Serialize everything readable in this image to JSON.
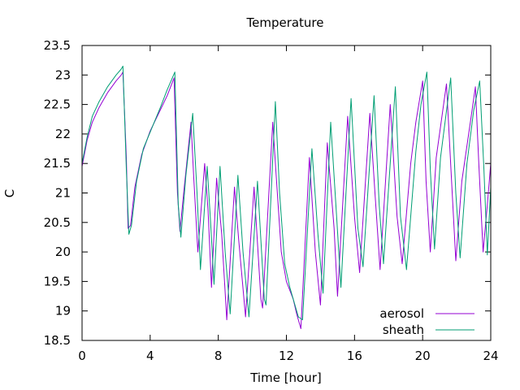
{
  "chart_data": {
    "type": "line",
    "title": "Temperature",
    "xlabel": "Time [hour]",
    "ylabel": "C",
    "xlim": [
      0,
      24
    ],
    "ylim": [
      18.5,
      23.5
    ],
    "xticks": [
      0,
      4,
      8,
      12,
      16,
      20,
      24
    ],
    "yticks": [
      18.5,
      19,
      19.5,
      20,
      20.5,
      21,
      21.5,
      22,
      22.5,
      23,
      23.5
    ],
    "grid": false,
    "legend_position": "bottom-right",
    "series": [
      {
        "name": "aerosol",
        "color": "#9400d3",
        "points": [
          [
            0,
            21.45
          ],
          [
            0.3,
            21.9
          ],
          [
            0.6,
            22.2
          ],
          [
            1.0,
            22.45
          ],
          [
            1.5,
            22.7
          ],
          [
            2.0,
            22.9
          ],
          [
            2.3,
            23.0
          ],
          [
            2.4,
            23.05
          ],
          [
            2.6,
            21.6
          ],
          [
            2.7,
            20.4
          ],
          [
            2.85,
            20.45
          ],
          [
            3.1,
            21.1
          ],
          [
            3.5,
            21.65
          ],
          [
            4.0,
            22.05
          ],
          [
            4.5,
            22.35
          ],
          [
            5.0,
            22.65
          ],
          [
            5.4,
            22.95
          ],
          [
            5.6,
            21.0
          ],
          [
            5.75,
            20.35
          ],
          [
            6.0,
            21.1
          ],
          [
            6.4,
            22.2
          ],
          [
            6.55,
            21.3
          ],
          [
            6.8,
            20.0
          ],
          [
            7.2,
            21.5
          ],
          [
            7.4,
            20.7
          ],
          [
            7.6,
            19.4
          ],
          [
            7.9,
            21.25
          ],
          [
            8.2,
            20.3
          ],
          [
            8.5,
            18.85
          ],
          [
            8.95,
            21.1
          ],
          [
            9.2,
            20.2
          ],
          [
            9.6,
            18.9
          ],
          [
            10.1,
            21.1
          ],
          [
            10.5,
            19.2
          ],
          [
            10.6,
            19.05
          ],
          [
            11.2,
            22.2
          ],
          [
            11.4,
            21.3
          ],
          [
            11.7,
            20.0
          ],
          [
            12.0,
            19.5
          ],
          [
            12.4,
            19.2
          ],
          [
            12.6,
            18.95
          ],
          [
            12.85,
            18.7
          ],
          [
            13.35,
            21.6
          ],
          [
            13.7,
            20.0
          ],
          [
            14.0,
            19.1
          ],
          [
            14.4,
            21.85
          ],
          [
            14.8,
            20.4
          ],
          [
            15.0,
            19.25
          ],
          [
            15.6,
            22.3
          ],
          [
            16.0,
            20.6
          ],
          [
            16.3,
            19.65
          ],
          [
            16.9,
            22.35
          ],
          [
            17.2,
            21.0
          ],
          [
            17.5,
            19.7
          ],
          [
            18.1,
            22.5
          ],
          [
            18.5,
            20.6
          ],
          [
            18.8,
            19.8
          ],
          [
            19.3,
            21.5
          ],
          [
            19.6,
            22.2
          ],
          [
            20.0,
            22.9
          ],
          [
            20.2,
            21.2
          ],
          [
            20.45,
            20.0
          ],
          [
            20.8,
            21.6
          ],
          [
            21.4,
            22.85
          ],
          [
            21.7,
            21.2
          ],
          [
            21.95,
            19.85
          ],
          [
            22.3,
            21.2
          ],
          [
            22.8,
            22.2
          ],
          [
            23.1,
            22.8
          ],
          [
            23.3,
            21.5
          ],
          [
            23.55,
            20.0
          ],
          [
            23.8,
            20.8
          ],
          [
            24.0,
            21.5
          ]
        ]
      },
      {
        "name": "sheath",
        "color": "#009e73",
        "points": [
          [
            0,
            21.5
          ],
          [
            0.3,
            21.95
          ],
          [
            0.6,
            22.3
          ],
          [
            1.0,
            22.55
          ],
          [
            1.5,
            22.8
          ],
          [
            2.0,
            23.0
          ],
          [
            2.3,
            23.1
          ],
          [
            2.4,
            23.15
          ],
          [
            2.6,
            21.4
          ],
          [
            2.75,
            20.3
          ],
          [
            2.9,
            20.45
          ],
          [
            3.2,
            21.2
          ],
          [
            3.6,
            21.75
          ],
          [
            4.1,
            22.1
          ],
          [
            4.6,
            22.45
          ],
          [
            5.0,
            22.75
          ],
          [
            5.45,
            23.05
          ],
          [
            5.65,
            20.8
          ],
          [
            5.8,
            20.25
          ],
          [
            6.1,
            21.3
          ],
          [
            6.5,
            22.35
          ],
          [
            6.75,
            21.0
          ],
          [
            6.95,
            19.7
          ],
          [
            7.35,
            21.45
          ],
          [
            7.55,
            20.5
          ],
          [
            7.75,
            19.45
          ],
          [
            8.1,
            21.45
          ],
          [
            8.4,
            20.0
          ],
          [
            8.7,
            18.95
          ],
          [
            9.15,
            21.3
          ],
          [
            9.45,
            20.0
          ],
          [
            9.8,
            18.9
          ],
          [
            10.3,
            21.2
          ],
          [
            10.7,
            19.2
          ],
          [
            10.8,
            19.1
          ],
          [
            11.35,
            22.55
          ],
          [
            11.6,
            21.0
          ],
          [
            11.9,
            19.8
          ],
          [
            12.2,
            19.4
          ],
          [
            12.5,
            19.1
          ],
          [
            12.7,
            18.9
          ],
          [
            12.95,
            18.85
          ],
          [
            13.5,
            21.75
          ],
          [
            13.85,
            20.3
          ],
          [
            14.15,
            19.3
          ],
          [
            14.6,
            22.2
          ],
          [
            14.95,
            20.6
          ],
          [
            15.2,
            19.4
          ],
          [
            15.8,
            22.6
          ],
          [
            16.2,
            20.4
          ],
          [
            16.5,
            19.75
          ],
          [
            17.15,
            22.65
          ],
          [
            17.45,
            20.8
          ],
          [
            17.7,
            19.8
          ],
          [
            18.4,
            22.8
          ],
          [
            18.7,
            20.6
          ],
          [
            19.05,
            19.7
          ],
          [
            19.6,
            21.7
          ],
          [
            19.9,
            22.5
          ],
          [
            20.25,
            23.05
          ],
          [
            20.45,
            21.4
          ],
          [
            20.7,
            20.05
          ],
          [
            21.05,
            21.6
          ],
          [
            21.65,
            22.95
          ],
          [
            21.95,
            21.0
          ],
          [
            22.2,
            19.9
          ],
          [
            22.6,
            21.5
          ],
          [
            23.0,
            22.4
          ],
          [
            23.35,
            22.9
          ],
          [
            23.6,
            21.4
          ],
          [
            23.8,
            19.95
          ],
          [
            24.0,
            21.1
          ],
          [
            24.0,
            21.65
          ]
        ]
      }
    ]
  }
}
